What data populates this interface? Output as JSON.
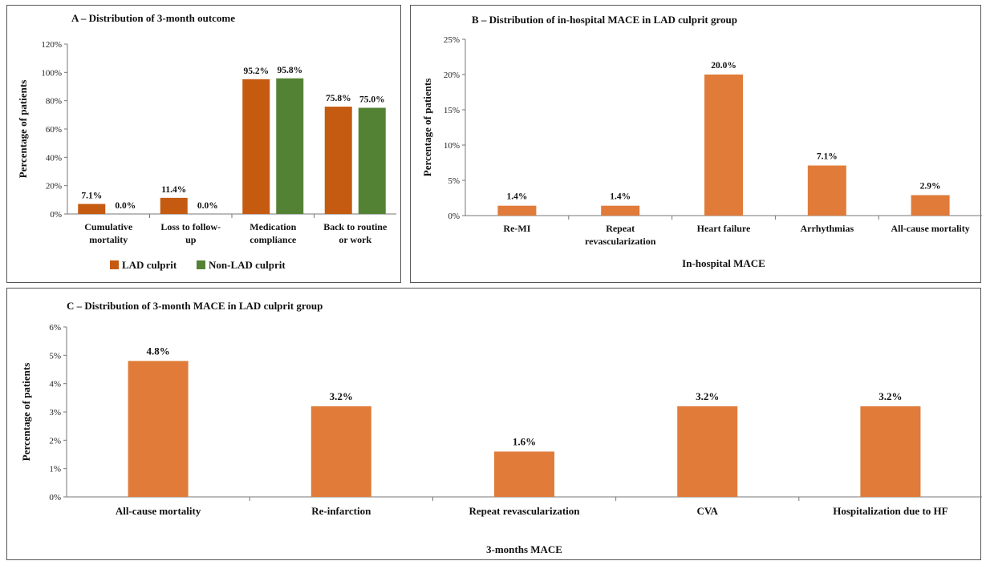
{
  "colors": {
    "lad": "#C55A11",
    "nonlad": "#548235",
    "mace": "#E07B39"
  },
  "chart_data": [
    {
      "type": "bar",
      "title": "A – Distribution of 3-month outcome",
      "xlabel": "",
      "ylabel": "Percentage of patients",
      "ylim": [
        0,
        120
      ],
      "yticks": [
        0,
        20,
        40,
        60,
        80,
        100,
        120
      ],
      "tick_suffix": "%",
      "categories": [
        [
          "Cumulative",
          "mortality"
        ],
        [
          "Loss to follow-",
          "up"
        ],
        [
          "Medication",
          "compliance"
        ],
        [
          "Back to routine",
          "or work"
        ]
      ],
      "series": [
        {
          "name": "LAD culprit",
          "values": [
            7.1,
            11.4,
            95.2,
            75.8
          ],
          "labels": [
            "7.1%",
            "11.4%",
            "95.2%",
            "75.8%"
          ]
        },
        {
          "name": "Non-LAD culprit",
          "values": [
            0.0,
            0.0,
            95.8,
            75.0
          ],
          "labels": [
            "0.0%",
            "0.0%",
            "95.8%",
            "75.0%"
          ]
        }
      ],
      "legend": "bottom"
    },
    {
      "type": "bar",
      "title": "B – Distribution of in-hospital MACE in LAD culprit group",
      "xlabel": "In-hospital MACE",
      "ylabel": "Percentage of patients",
      "ylim": [
        0,
        25
      ],
      "yticks": [
        0,
        5,
        10,
        15,
        20,
        25
      ],
      "tick_suffix": "%",
      "categories": [
        [
          "Re-MI"
        ],
        [
          "Repeat",
          "revascularization"
        ],
        [
          "Heart failure"
        ],
        [
          "Arrhythmias"
        ],
        [
          "All-cause mortality"
        ]
      ],
      "values": [
        1.4,
        1.4,
        20.0,
        7.1,
        2.9
      ],
      "labels": [
        "1.4%",
        "1.4%",
        "20.0%",
        "7.1%",
        "2.9%"
      ]
    },
    {
      "type": "bar",
      "title": "C – Distribution of 3-month MACE in LAD culprit group",
      "xlabel": "3-months MACE",
      "ylabel": "Percentage of patients",
      "ylim": [
        0,
        6
      ],
      "yticks": [
        0,
        1,
        2,
        3,
        4,
        5,
        6
      ],
      "tick_suffix": "%",
      "categories": [
        [
          "All-cause mortality"
        ],
        [
          "Re-infarction"
        ],
        [
          "Repeat revascularization"
        ],
        [
          "CVA"
        ],
        [
          "Hospitalization due to HF"
        ]
      ],
      "values": [
        4.8,
        3.2,
        1.6,
        3.2,
        3.2
      ],
      "labels": [
        "4.8%",
        "3.2%",
        "1.6%",
        "3.2%",
        "3.2%"
      ]
    }
  ]
}
